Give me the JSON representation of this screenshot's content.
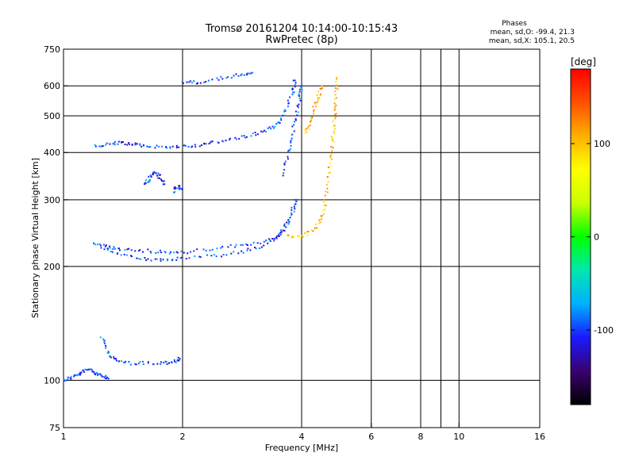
{
  "header": {
    "title": "Tromsø 20161204 10:14:00-10:15:43",
    "subtitle": "RwPretec (8p)",
    "stats_title": "Phases",
    "stats_o": "mean, sd,O: -99.4, 21.3",
    "stats_x": "mean, sd,X: 105.1, 20.5"
  },
  "chart_data": {
    "type": "scatter",
    "title": "Tromsø 20161204 10:14:00-10:15:43",
    "subtitle": "RwPretec (8p)",
    "xlabel": "Frequency [MHz]",
    "ylabel": "Stationary phase Virtual Height [km]",
    "xscale": "log",
    "yscale": "log",
    "xlim": [
      1,
      16
    ],
    "ylim": [
      75,
      750
    ],
    "xticks": [
      1,
      2,
      4,
      6,
      8,
      10,
      16
    ],
    "xtick_labels": [
      "1",
      "2",
      "4",
      "6",
      "8",
      "10",
      "16"
    ],
    "yticks": [
      75,
      100,
      200,
      300,
      400,
      500,
      600,
      750
    ],
    "ytick_labels": [
      "75",
      "100",
      "200",
      "300",
      "400",
      "500",
      "600",
      "750"
    ],
    "x_gridlines": [
      2,
      4,
      6,
      8,
      9,
      10
    ],
    "y_gridlines": [
      100,
      200,
      300,
      400,
      500,
      600
    ],
    "grid": true,
    "colorbar": {
      "label": "[deg]",
      "range": [
        -180,
        180
      ],
      "ticks": [
        100,
        0,
        -100
      ],
      "tick_labels": [
        "100",
        "0",
        "-100"
      ],
      "colors": [
        "#000000",
        "#3a0070",
        "#1a1aff",
        "#00b0ff",
        "#00e8b0",
        "#00ff00",
        "#c8ff00",
        "#ffff00",
        "#ffb000",
        "#ff5000",
        "#ff0000"
      ]
    },
    "series": [
      {
        "mode": "O",
        "color_value": -100,
        "traces": [
          {
            "points": [
              [
                1.0,
                100
              ],
              [
                1.05,
                102
              ],
              [
                1.1,
                104
              ],
              [
                1.15,
                107
              ],
              [
                1.2,
                105
              ],
              [
                1.25,
                103
              ],
              [
                1.3,
                101
              ]
            ]
          },
          {
            "points": [
              [
                1.25,
                130
              ],
              [
                1.3,
                118
              ],
              [
                1.35,
                113
              ],
              [
                1.45,
                111
              ],
              [
                1.6,
                111
              ],
              [
                1.8,
                111
              ],
              [
                1.9,
                112
              ],
              [
                1.97,
                114
              ]
            ]
          },
          {
            "points": [
              [
                1.2,
                415
              ],
              [
                1.3,
                420
              ],
              [
                1.4,
                425
              ],
              [
                1.5,
                420
              ],
              [
                1.6,
                415
              ],
              [
                1.8,
                414
              ],
              [
                2.0,
                415
              ],
              [
                2.2,
                418
              ],
              [
                2.4,
                425
              ],
              [
                2.7,
                435
              ],
              [
                3.0,
                445
              ],
              [
                3.3,
                460
              ],
              [
                3.5,
                480
              ],
              [
                3.65,
                520
              ],
              [
                3.8,
                580
              ],
              [
                3.85,
                620
              ]
            ]
          },
          {
            "points": [
              [
                1.6,
                330
              ],
              [
                1.65,
                340
              ],
              [
                1.7,
                355
              ],
              [
                1.75,
                345
              ],
              [
                1.8,
                330
              ]
            ]
          },
          {
            "points": [
              [
                1.9,
                315
              ],
              [
                1.95,
                325
              ],
              [
                2.0,
                320
              ]
            ]
          },
          {
            "points": [
              [
                1.2,
                230
              ],
              [
                1.3,
                225
              ],
              [
                1.4,
                222
              ],
              [
                1.6,
                220
              ],
              [
                1.8,
                218
              ],
              [
                2.0,
                218
              ],
              [
                2.4,
                222
              ],
              [
                2.8,
                228
              ],
              [
                3.2,
                232
              ],
              [
                3.5,
                240
              ],
              [
                3.7,
                262
              ],
              [
                3.85,
                300
              ]
            ]
          },
          {
            "points": [
              [
                1.25,
                225
              ],
              [
                1.4,
                215
              ],
              [
                1.6,
                210
              ],
              [
                1.8,
                207
              ],
              [
                2.0,
                210
              ],
              [
                2.4,
                213
              ],
              [
                2.8,
                218
              ],
              [
                3.2,
                226
              ],
              [
                3.5,
                240
              ],
              [
                3.7,
                262
              ],
              [
                3.9,
                300
              ]
            ]
          },
          {
            "points": [
              [
                2.0,
                612
              ],
              [
                2.2,
                614
              ],
              [
                2.5,
                628
              ],
              [
                2.8,
                642
              ],
              [
                3.0,
                650
              ]
            ]
          },
          {
            "points": [
              [
                3.6,
                350
              ],
              [
                3.7,
                400
              ],
              [
                3.8,
                450
              ],
              [
                3.9,
                510
              ],
              [
                3.95,
                560
              ],
              [
                4.0,
                600
              ]
            ]
          }
        ]
      },
      {
        "mode": "X",
        "color_value": 105,
        "traces": [
          {
            "points": [
              [
                3.7,
                240
              ],
              [
                4.0,
                240
              ],
              [
                4.3,
                250
              ],
              [
                4.5,
                270
              ],
              [
                4.6,
                300
              ],
              [
                4.7,
                350
              ],
              [
                4.75,
                400
              ],
              [
                4.8,
                450
              ],
              [
                4.85,
                500
              ],
              [
                4.9,
                560
              ],
              [
                4.9,
                630
              ]
            ]
          },
          {
            "points": [
              [
                4.1,
                450
              ],
              [
                4.2,
                480
              ],
              [
                4.3,
                520
              ],
              [
                4.4,
                560
              ],
              [
                4.5,
                600
              ]
            ]
          }
        ]
      }
    ]
  }
}
